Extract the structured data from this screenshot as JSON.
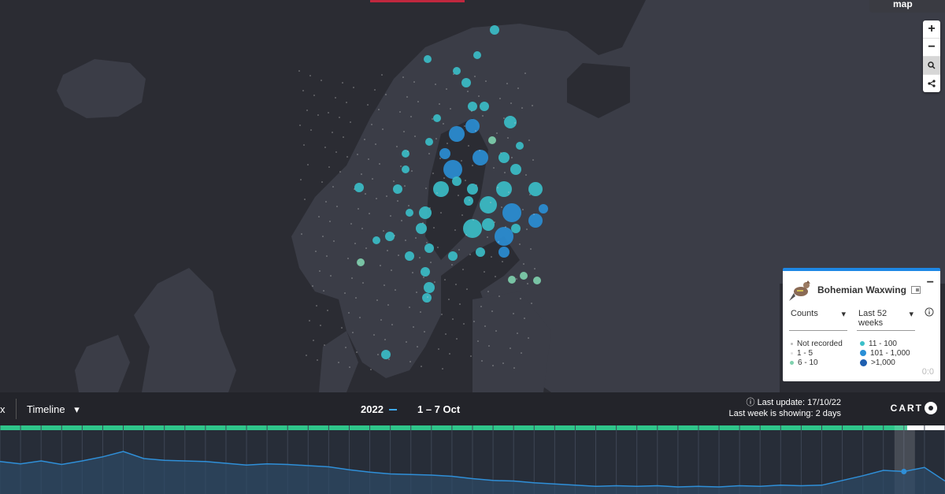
{
  "basemap": {
    "label": "Doodle map"
  },
  "zoom": {
    "in": "+",
    "out": "−"
  },
  "legend": {
    "species": "Bohemian Waxwing",
    "metric": "Counts",
    "period": "Last 52 weeks",
    "classes": [
      {
        "label": "Not recorded",
        "color": "#bbbbbb"
      },
      {
        "label": "1 - 5",
        "color": "#e0e0e0"
      },
      {
        "label": "6 - 10",
        "color": "#7fd1ae"
      },
      {
        "label": "11 - 100",
        "color": "#3bbfc9"
      },
      {
        "label": "101 - 1,000",
        "color": "#2a8fd6"
      },
      {
        "label": ">1,000",
        "color": "#1f5fb0"
      }
    ],
    "corner": "0:0"
  },
  "bottom": {
    "x_label": "x",
    "timeline_label": "Timeline",
    "year": "2022",
    "range": "1 – 7 Oct",
    "last_update": "Last update: 17/10/22",
    "last_week": "Last week is showing: 2 days",
    "brand": "CART"
  },
  "chart_data": {
    "type": "area",
    "title": "",
    "xlabel": "",
    "ylabel": "",
    "ylim": [
      0,
      100
    ],
    "x": [
      0,
      1,
      2,
      3,
      4,
      5,
      6,
      7,
      8,
      9,
      10,
      11,
      12,
      13,
      14,
      15,
      16,
      17,
      18,
      19,
      20,
      21,
      22,
      23,
      24,
      25,
      26,
      27,
      28,
      29,
      30,
      31,
      32,
      33,
      34,
      35,
      36,
      37,
      38,
      39,
      40,
      41,
      42,
      43,
      44,
      45,
      46
    ],
    "series": [
      {
        "values": [
          55,
          51,
          56,
          50,
          56,
          63,
          72,
          60,
          57,
          56,
          55,
          52,
          49,
          51,
          50,
          48,
          46,
          41,
          37,
          34,
          33,
          32,
          30,
          26,
          23,
          22,
          19,
          17,
          15,
          13,
          14,
          13,
          14,
          12,
          13,
          12,
          14,
          13,
          15,
          14,
          15,
          23,
          31,
          40,
          38,
          45,
          22
        ]
      }
    ],
    "selected_index": 44,
    "colors": {
      "line": "#2f8fd8",
      "fill": "#2d4a66",
      "bar": "#2fc58a"
    }
  },
  "map_colors": {
    "land": "#3b3d47",
    "sea": "#2b2c33",
    "border": "#56585f"
  }
}
